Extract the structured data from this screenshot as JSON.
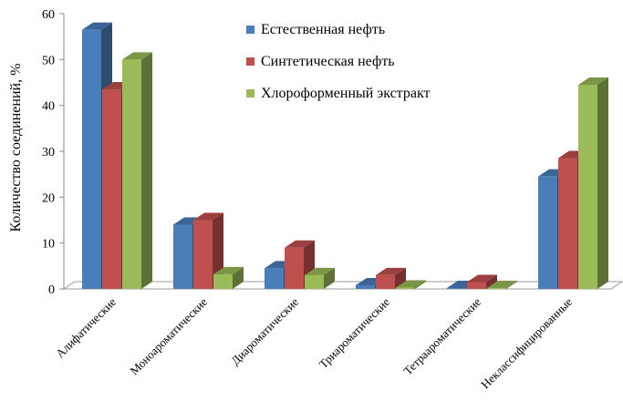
{
  "chart_data": {
    "type": "bar",
    "title": "",
    "xlabel": "",
    "ylabel": "Количество соединений, %",
    "ylim": [
      0,
      60
    ],
    "yticks": [
      0,
      10,
      20,
      30,
      40,
      50,
      60
    ],
    "grid": false,
    "legend_position": "top-right",
    "categories": [
      "Алифатические",
      "Моноароматические",
      "Диароматические",
      "Триароматические",
      "Тетраароматические",
      "Неклассифицированные"
    ],
    "series": [
      {
        "name": "Естественная нефть",
        "color": "#4a7ebb",
        "values": [
          56.5,
          14,
          4.5,
          0.8,
          0.2,
          24.5
        ]
      },
      {
        "name": "Синтетическая нефть",
        "color": "#c0504d",
        "values": [
          43.5,
          15,
          9,
          3,
          1.5,
          28.5
        ]
      },
      {
        "name": "Хлороформенный экстракт",
        "color": "#9bbb59",
        "values": [
          50,
          3.2,
          3,
          0.3,
          0.2,
          44.5
        ]
      }
    ]
  }
}
